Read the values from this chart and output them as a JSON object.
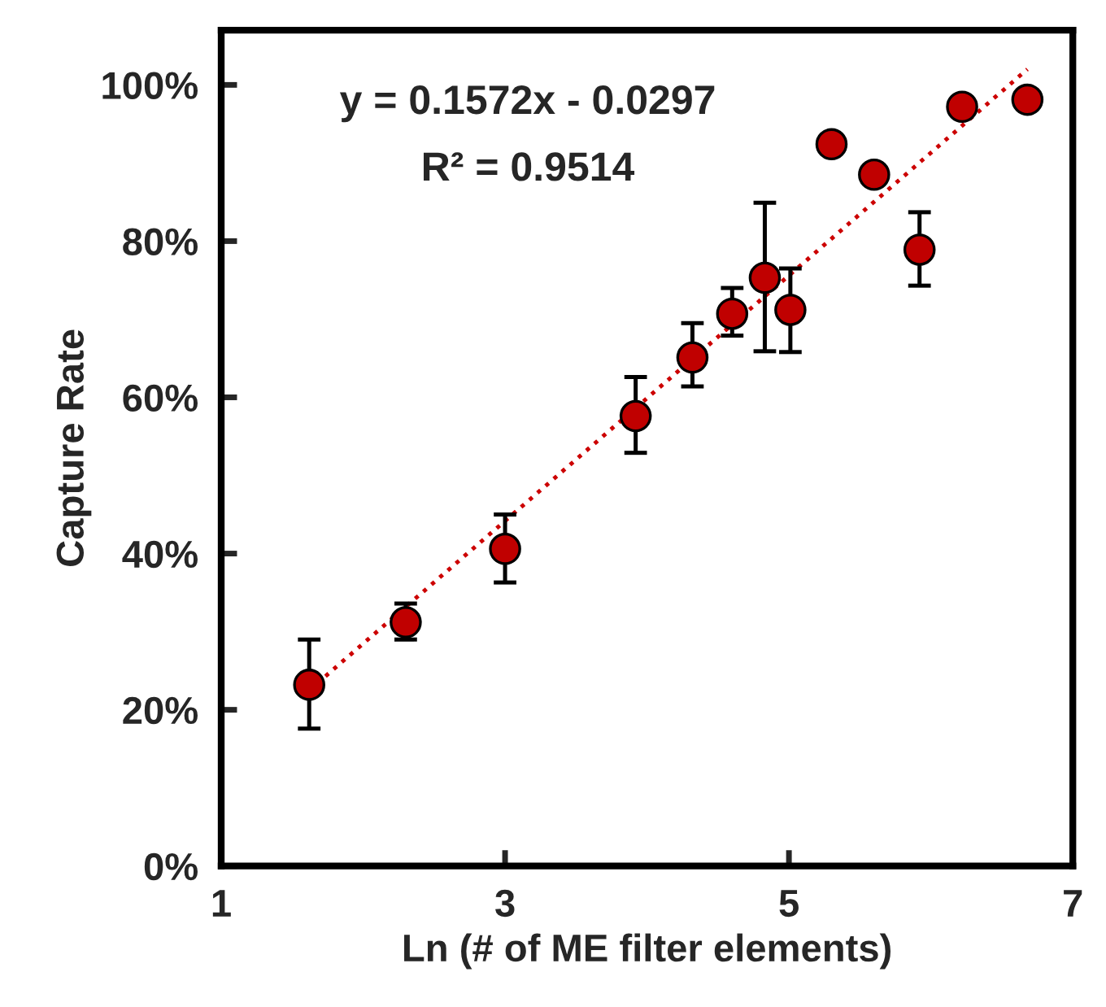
{
  "chart_data": {
    "type": "scatter",
    "xlabel": "Ln (# of ME filter elements)",
    "ylabel": "Capture Rate",
    "annotations": [
      "y = 0.1572x - 0.0297",
      "R² = 0.9514"
    ],
    "series": [
      {
        "type": "scatter",
        "color": "#c00000",
        "x": [
          1.62,
          2.3,
          3.0,
          3.92,
          4.32,
          4.6,
          4.83,
          5.01,
          5.3,
          5.6,
          5.92,
          6.22,
          6.68
        ],
        "values": [
          23.2,
          31.2,
          40.6,
          57.6,
          65.1,
          70.7,
          75.3,
          71.2,
          92.4,
          88.5,
          78.9,
          97.2,
          98.1
        ],
        "errors": [
          [
            17.6,
            29.0
          ],
          [
            29.0,
            33.6
          ],
          [
            36.3,
            45.0
          ],
          [
            52.9,
            62.6
          ],
          [
            61.4,
            69.5
          ],
          [
            67.9,
            74.0
          ],
          [
            65.9,
            84.9
          ],
          [
            65.8,
            76.5
          ],
          null,
          null,
          [
            74.3,
            83.7
          ],
          null,
          null
        ],
        "marker": "circle"
      },
      {
        "type": "line",
        "color": "#cc0000",
        "x": [
          1.62,
          6.68
        ],
        "values": [
          22.5,
          102.0
        ],
        "line_style": "dotted",
        "marker": "none"
      }
    ],
    "xlim": [
      1,
      7
    ],
    "xticks": [
      1,
      3,
      5,
      7
    ],
    "ylim": [
      0,
      107
    ],
    "yticks": [
      {
        "value": 0,
        "label": "0%"
      },
      {
        "value": 20,
        "label": "20%"
      },
      {
        "value": 40,
        "label": "40%"
      },
      {
        "value": 60,
        "label": "60%"
      },
      {
        "value": 80,
        "label": "80%"
      },
      {
        "value": 100,
        "label": "100%"
      }
    ],
    "grid": false,
    "legend": false
  }
}
